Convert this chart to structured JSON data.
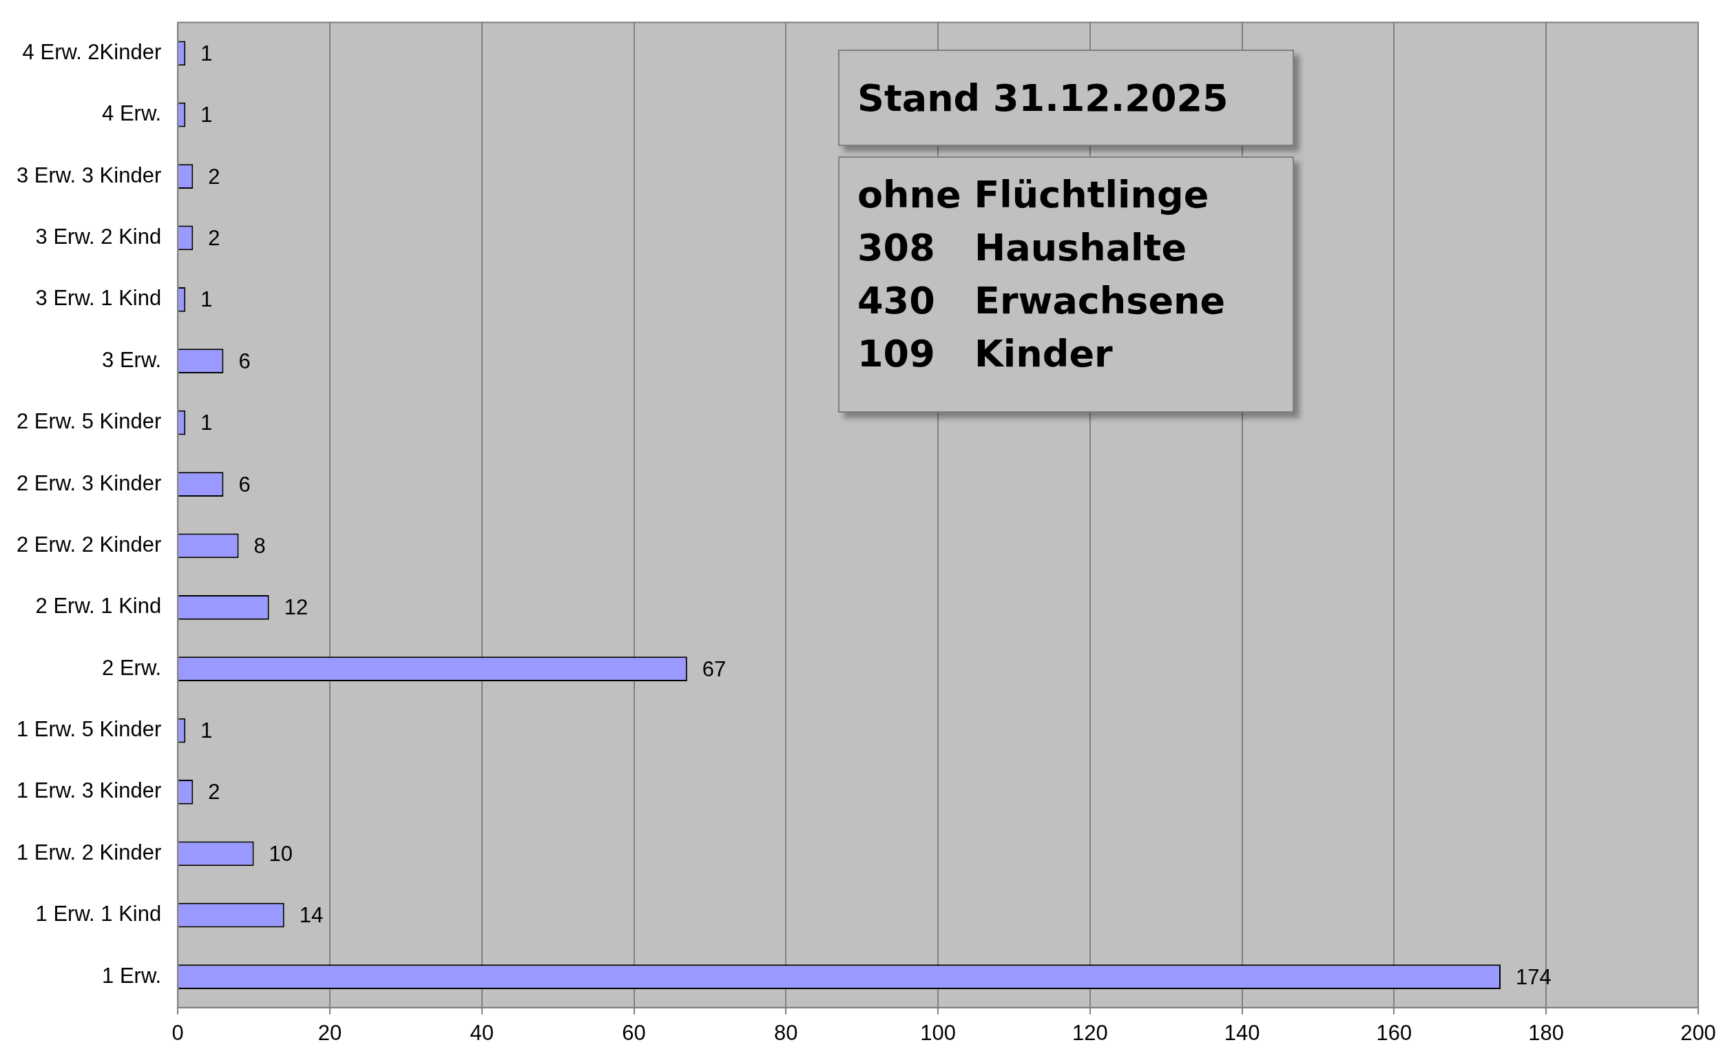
{
  "chart_data": {
    "type": "bar",
    "orientation": "horizontal",
    "categories": [
      "4 Erw. 2Kinder",
      "4 Erw.",
      "3 Erw. 3 Kinder",
      "3 Erw. 2 Kind",
      "3 Erw. 1 Kind",
      "3 Erw.",
      "2 Erw. 5 Kinder",
      "2 Erw. 3 Kinder",
      "2 Erw. 2 Kinder",
      "2 Erw. 1 Kind",
      "2 Erw.",
      "1 Erw. 5 Kinder",
      "1 Erw. 3 Kinder",
      "1 Erw. 2 Kinder",
      "1 Erw. 1 Kind",
      "1 Erw."
    ],
    "values": [
      1,
      1,
      2,
      2,
      1,
      6,
      1,
      6,
      8,
      12,
      67,
      1,
      2,
      10,
      14,
      174
    ],
    "color": "#9999ff",
    "xlim": [
      0,
      200
    ],
    "xticks": [
      0,
      20,
      40,
      60,
      80,
      100,
      120,
      140,
      160,
      180,
      200
    ],
    "grid": "x",
    "legend": false,
    "data_labels": true,
    "annotations": [
      "Stand 31.12.2025",
      "ohne Flüchtlinge",
      "308",
      "Haushalte",
      "430",
      "Erwachsene",
      "109",
      "Kinder"
    ]
  }
}
